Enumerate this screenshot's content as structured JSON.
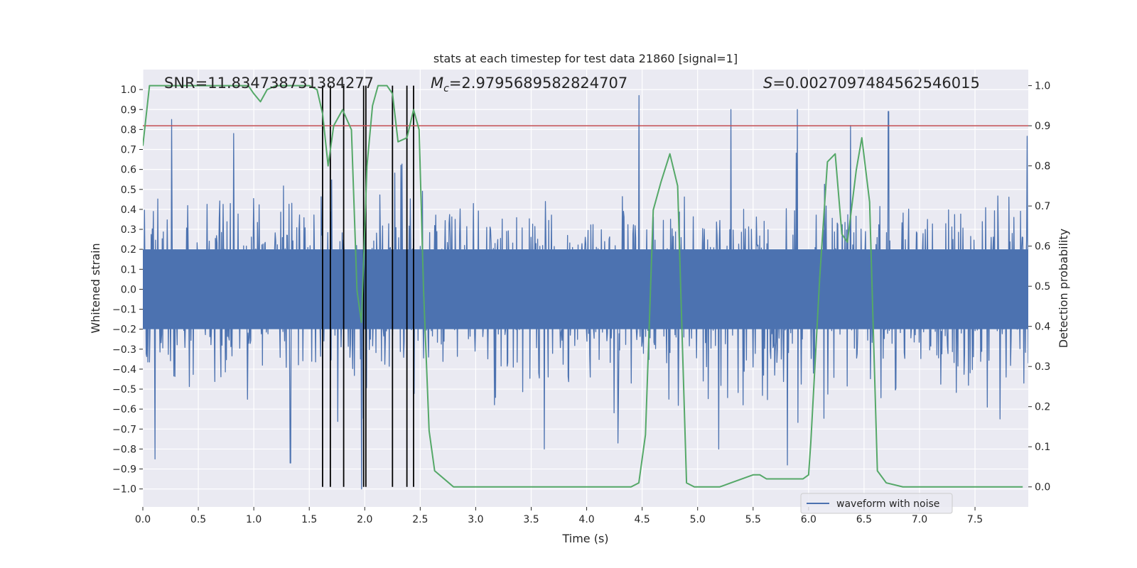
{
  "chart_data": {
    "type": "line",
    "title": "stats at each timestep for test data 21860 [signal=1]",
    "xlabel": "Time (s)",
    "ylabel": "Whitened strain",
    "y2label": "Detection probability",
    "xlim": [
      0.0,
      7.98
    ],
    "ylim": [
      -1.09,
      1.1
    ],
    "y2lim": [
      -0.05,
      1.04
    ],
    "x_ticks": [
      0.0,
      0.5,
      1.0,
      1.5,
      2.0,
      2.5,
      3.0,
      3.5,
      4.0,
      4.5,
      5.0,
      5.5,
      6.0,
      6.5,
      7.0,
      7.5
    ],
    "x_tick_labels": [
      "0.0",
      "0.5",
      "1.0",
      "1.5",
      "2.0",
      "2.5",
      "3.0",
      "3.5",
      "4.0",
      "4.5",
      "5.0",
      "5.5",
      "6.0",
      "6.5",
      "7.0",
      "7.5"
    ],
    "y_ticks": [
      1.0,
      0.9,
      0.8,
      0.7,
      0.6,
      0.5,
      0.4,
      0.3,
      0.2,
      0.1,
      0.0,
      -0.1,
      -0.2,
      -0.3,
      -0.4,
      -0.5,
      -0.6,
      -0.7,
      -0.8,
      -0.9,
      -1.0
    ],
    "y_tick_labels": [
      "1.0",
      "0.9",
      "0.8",
      "0.7",
      "0.6",
      "0.5",
      "0.4",
      "0.3",
      "0.2",
      "0.1",
      "0.0",
      "−0.1",
      "−0.2",
      "−0.3",
      "−0.4",
      "−0.5",
      "−0.6",
      "−0.7",
      "−0.8",
      "−0.9",
      "−1.0"
    ],
    "y2_ticks": [
      1.0,
      0.9,
      0.8,
      0.7,
      0.6,
      0.5,
      0.4,
      0.3,
      0.2,
      0.1,
      0.0
    ],
    "y2_tick_labels": [
      "1.0",
      "0.9",
      "0.8",
      "0.7",
      "0.6",
      "0.5",
      "0.4",
      "0.3",
      "0.2",
      "0.1",
      "0.0"
    ],
    "grid": true,
    "threshold": {
      "y2_value": 0.9,
      "color": "#c44e52"
    },
    "detection_vlines": {
      "x": [
        1.62,
        1.69,
        1.81,
        1.99,
        2.01,
        2.25,
        2.38,
        2.44
      ],
      "color": "#000000"
    },
    "waveform": {
      "name": "waveform with noise",
      "color": "#4c72b0",
      "duration": 7.98,
      "n_samples": 1600,
      "typical_amplitude": 0.4,
      "peaks": [
        {
          "x": 0.26,
          "y": 0.85
        },
        {
          "x": 0.11,
          "y": -0.85
        },
        {
          "x": 0.82,
          "y": 0.78
        },
        {
          "x": 1.33,
          "y": -0.87
        },
        {
          "x": 1.97,
          "y": 0.78
        },
        {
          "x": 1.97,
          "y": -1.0
        },
        {
          "x": 4.47,
          "y": 0.97
        },
        {
          "x": 5.3,
          "y": 0.9
        },
        {
          "x": 5.9,
          "y": 0.9
        },
        {
          "x": 6.72,
          "y": 0.89
        },
        {
          "x": 6.38,
          "y": 0.82
        },
        {
          "x": 5.81,
          "y": -0.88
        },
        {
          "x": 4.28,
          "y": -0.77
        },
        {
          "x": 3.62,
          "y": -0.8
        },
        {
          "x": 5.19,
          "y": -0.8
        }
      ]
    },
    "detection_probability": {
      "color": "#55a868",
      "x": [
        0.0,
        0.06,
        0.15,
        0.3,
        0.5,
        0.7,
        0.85,
        0.95,
        1.0,
        1.06,
        1.12,
        1.2,
        1.3,
        1.4,
        1.5,
        1.57,
        1.62,
        1.67,
        1.72,
        1.8,
        1.88,
        1.93,
        1.97,
        2.02,
        2.07,
        2.12,
        2.2,
        2.25,
        2.3,
        2.38,
        2.44,
        2.49,
        2.53,
        2.58,
        2.63,
        2.8,
        3.0,
        3.2,
        3.5,
        3.8,
        4.0,
        4.2,
        4.4,
        4.47,
        4.53,
        4.6,
        4.67,
        4.75,
        4.82,
        4.9,
        4.97,
        5.1,
        5.2,
        5.3,
        5.4,
        5.5,
        5.56,
        5.62,
        5.7,
        5.77,
        5.82,
        5.88,
        5.95,
        6.0,
        6.02,
        6.1,
        6.17,
        6.24,
        6.3,
        6.35,
        6.43,
        6.48,
        6.55,
        6.62,
        6.7,
        6.85,
        7.0,
        7.2,
        7.4,
        7.6,
        7.8,
        7.93
      ],
      "y": [
        0.85,
        1.0,
        1.0,
        1.0,
        1.0,
        1.0,
        1.0,
        1.0,
        0.98,
        0.96,
        0.99,
        1.0,
        1.0,
        1.0,
        1.0,
        0.99,
        0.93,
        0.8,
        0.9,
        0.94,
        0.89,
        0.49,
        0.41,
        0.8,
        0.95,
        1.0,
        1.0,
        0.98,
        0.86,
        0.87,
        0.94,
        0.89,
        0.49,
        0.14,
        0.04,
        0.0,
        0.0,
        0.0,
        0.0,
        0.0,
        0.0,
        0.0,
        0.0,
        0.01,
        0.13,
        0.69,
        0.76,
        0.83,
        0.75,
        0.01,
        0.0,
        0.0,
        0.0,
        0.01,
        0.02,
        0.03,
        0.03,
        0.02,
        0.02,
        0.02,
        0.02,
        0.02,
        0.02,
        0.03,
        0.11,
        0.52,
        0.81,
        0.83,
        0.63,
        0.61,
        0.79,
        0.87,
        0.71,
        0.04,
        0.01,
        0.0,
        0.0,
        0.0,
        0.0,
        0.0,
        0.0,
        0.0
      ]
    },
    "annotations": {
      "snr_label": "SNR=11.834738731384277",
      "mc_symbol": "M",
      "mc_subscript": "c",
      "mc_value": "=2.9795689582824707",
      "s_symbol": "S",
      "s_value": "=0.0027097484562546015"
    },
    "legend": {
      "label": "waveform with noise",
      "position": "bottom-right"
    }
  }
}
